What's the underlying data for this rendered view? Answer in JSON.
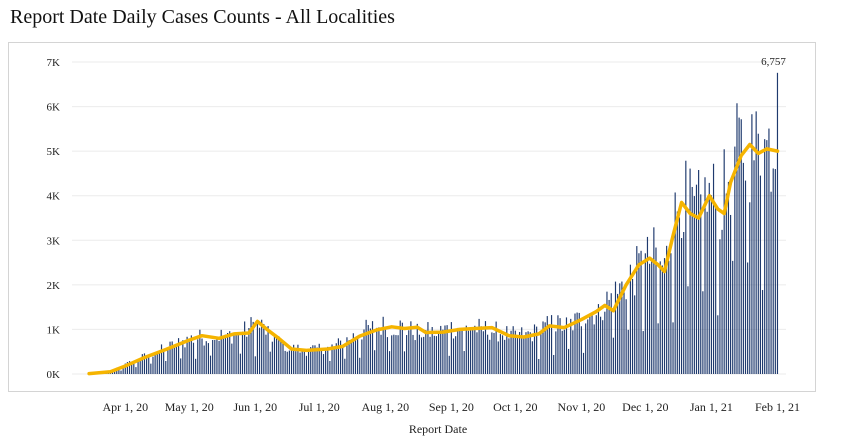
{
  "chart_data": {
    "type": "bar",
    "title": "Report Date Daily Cases Counts - All Localities",
    "xlabel": "Report Date",
    "ylabel": "",
    "ylim": [
      0,
      7000
    ],
    "y_ticks": [
      {
        "value": 0,
        "label": "0K"
      },
      {
        "value": 1000,
        "label": "1K"
      },
      {
        "value": 2000,
        "label": "2K"
      },
      {
        "value": 3000,
        "label": "3K"
      },
      {
        "value": 4000,
        "label": "4K"
      },
      {
        "value": 5000,
        "label": "5K"
      },
      {
        "value": 6000,
        "label": "6K"
      },
      {
        "value": 7000,
        "label": "7K"
      }
    ],
    "x_range": [
      "2020-03-07",
      "2021-02-05"
    ],
    "x_ticks": [
      {
        "date": "2020-04-01",
        "label": "Apr 1, 20"
      },
      {
        "date": "2020-05-01",
        "label": "May 1, 20"
      },
      {
        "date": "2020-06-01",
        "label": "Jun 1, 20"
      },
      {
        "date": "2020-07-01",
        "label": "Jul 1, 20"
      },
      {
        "date": "2020-08-01",
        "label": "Aug 1, 20"
      },
      {
        "date": "2020-09-01",
        "label": "Sep 1, 20"
      },
      {
        "date": "2020-10-01",
        "label": "Oct 1, 20"
      },
      {
        "date": "2020-11-01",
        "label": "Nov 1, 20"
      },
      {
        "date": "2020-12-01",
        "label": "Dec 1, 20"
      },
      {
        "date": "2021-01-01",
        "label": "Jan 1, 21"
      },
      {
        "date": "2021-02-01",
        "label": "Feb 1, 21"
      }
    ],
    "grid": true,
    "colors": {
      "bars": "#1f3a6e",
      "moving_average": "#f5b400",
      "grid": "#ebebeb"
    },
    "daily_cases_anchors": [
      [
        "2020-03-17",
        10
      ],
      [
        "2020-03-25",
        60
      ],
      [
        "2020-04-01",
        200
      ],
      [
        "2020-04-10",
        380
      ],
      [
        "2020-04-20",
        560
      ],
      [
        "2020-05-01",
        760
      ],
      [
        "2020-05-10",
        820
      ],
      [
        "2020-05-20",
        850
      ],
      [
        "2020-05-28",
        950
      ],
      [
        "2020-06-01",
        1120
      ],
      [
        "2020-06-05",
        1000
      ],
      [
        "2020-06-12",
        700
      ],
      [
        "2020-06-18",
        560
      ],
      [
        "2020-06-25",
        520
      ],
      [
        "2020-07-01",
        560
      ],
      [
        "2020-07-08",
        600
      ],
      [
        "2020-07-15",
        760
      ],
      [
        "2020-07-22",
        950
      ],
      [
        "2020-08-01",
        1060
      ],
      [
        "2020-08-08",
        1030
      ],
      [
        "2020-08-15",
        920
      ],
      [
        "2020-08-25",
        920
      ],
      [
        "2020-09-01",
        1000
      ],
      [
        "2020-09-10",
        1020
      ],
      [
        "2020-09-20",
        950
      ],
      [
        "2020-10-01",
        830
      ],
      [
        "2020-10-10",
        900
      ],
      [
        "2020-10-18",
        1080
      ],
      [
        "2020-10-25",
        1050
      ],
      [
        "2020-11-01",
        1200
      ],
      [
        "2020-11-08",
        1400
      ],
      [
        "2020-11-15",
        1650
      ],
      [
        "2020-11-22",
        2000
      ],
      [
        "2020-11-28",
        2300
      ],
      [
        "2020-12-05",
        2600
      ],
      [
        "2020-12-10",
        2300
      ],
      [
        "2020-12-14",
        3200
      ],
      [
        "2020-12-18",
        3900
      ],
      [
        "2020-12-24",
        3500
      ],
      [
        "2020-12-28",
        3700
      ],
      [
        "2021-01-01",
        3900
      ],
      [
        "2021-01-05",
        3600
      ],
      [
        "2021-01-09",
        4300
      ],
      [
        "2021-01-14",
        4900
      ],
      [
        "2021-01-20",
        4850
      ],
      [
        "2021-01-26",
        4900
      ],
      [
        "2021-01-31",
        5050
      ]
    ],
    "moving_average_anchors": [
      [
        "2020-03-15",
        10
      ],
      [
        "2020-03-25",
        50
      ],
      [
        "2020-04-01",
        180
      ],
      [
        "2020-04-10",
        370
      ],
      [
        "2020-04-20",
        550
      ],
      [
        "2020-05-01",
        760
      ],
      [
        "2020-05-07",
        860
      ],
      [
        "2020-05-15",
        800
      ],
      [
        "2020-05-22",
        900
      ],
      [
        "2020-05-29",
        920
      ],
      [
        "2020-06-02",
        1180
      ],
      [
        "2020-06-07",
        980
      ],
      [
        "2020-06-12",
        800
      ],
      [
        "2020-06-18",
        560
      ],
      [
        "2020-06-25",
        530
      ],
      [
        "2020-07-05",
        560
      ],
      [
        "2020-07-12",
        620
      ],
      [
        "2020-07-20",
        850
      ],
      [
        "2020-07-28",
        990
      ],
      [
        "2020-08-04",
        1060
      ],
      [
        "2020-08-10",
        1020
      ],
      [
        "2020-08-16",
        1050
      ],
      [
        "2020-08-20",
        930
      ],
      [
        "2020-08-28",
        940
      ],
      [
        "2020-09-05",
        1000
      ],
      [
        "2020-09-12",
        1020
      ],
      [
        "2020-09-20",
        1040
      ],
      [
        "2020-09-28",
        860
      ],
      [
        "2020-10-05",
        830
      ],
      [
        "2020-10-12",
        900
      ],
      [
        "2020-10-17",
        1080
      ],
      [
        "2020-10-24",
        1040
      ],
      [
        "2020-11-01",
        1220
      ],
      [
        "2020-11-08",
        1400
      ],
      [
        "2020-11-12",
        1540
      ],
      [
        "2020-11-16",
        1420
      ],
      [
        "2020-11-22",
        2000
      ],
      [
        "2020-11-28",
        2450
      ],
      [
        "2020-12-03",
        2600
      ],
      [
        "2020-12-07",
        2450
      ],
      [
        "2020-12-10",
        2300
      ],
      [
        "2020-12-14",
        3100
      ],
      [
        "2020-12-18",
        3850
      ],
      [
        "2020-12-22",
        3600
      ],
      [
        "2020-12-26",
        3500
      ],
      [
        "2020-12-31",
        4000
      ],
      [
        "2021-01-04",
        3700
      ],
      [
        "2021-01-07",
        3600
      ],
      [
        "2021-01-10",
        4300
      ],
      [
        "2021-01-15",
        4900
      ],
      [
        "2021-01-19",
        5150
      ],
      [
        "2021-01-23",
        4950
      ],
      [
        "2021-01-27",
        5050
      ],
      [
        "2021-02-01",
        5000
      ]
    ],
    "last_day": {
      "date": "2021-02-01",
      "value": 6757,
      "label": "6,757"
    }
  }
}
